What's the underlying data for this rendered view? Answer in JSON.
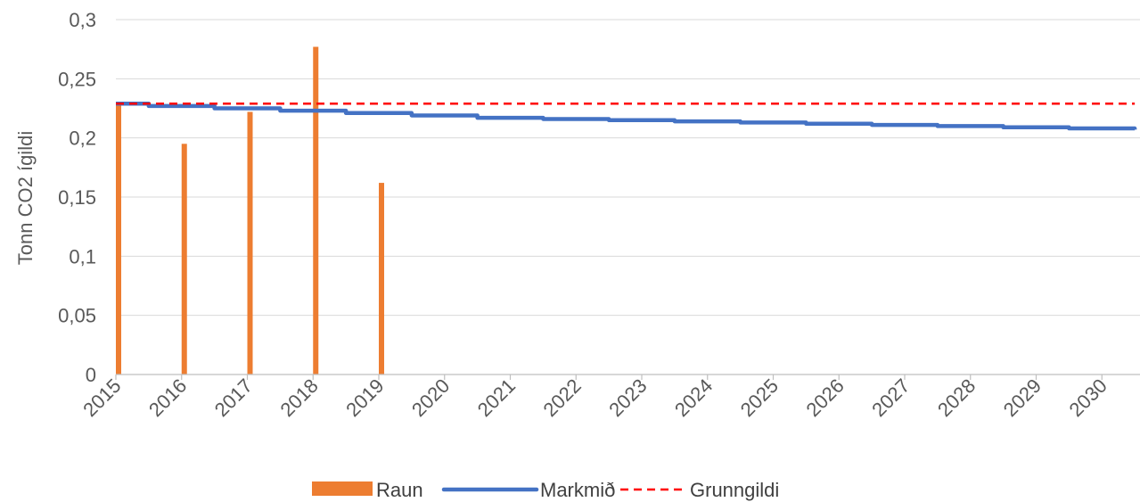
{
  "chart_data": {
    "type": "bar",
    "ylabel": "Tonn CO2 ígildi",
    "xlabel": "",
    "ylim": [
      0,
      0.3
    ],
    "y_ticks": [
      "0",
      "0,05",
      "0,1",
      "0,15",
      "0,2",
      "0,25",
      "0,3"
    ],
    "x_ticks": [
      "2015",
      "2016",
      "2017",
      "2018",
      "2019",
      "2020",
      "2021",
      "2022",
      "2023",
      "2024",
      "2025",
      "2026",
      "2027",
      "2028",
      "2029",
      "2030"
    ],
    "grid": true,
    "legend_position": "bottom",
    "series": [
      {
        "name": "Raun",
        "type": "bar",
        "color": "#ED7D31",
        "x": [
          2015,
          2016,
          2017,
          2018,
          2019
        ],
        "values": [
          0.229,
          0.195,
          0.222,
          0.277,
          0.162
        ]
      },
      {
        "name": "Markmið",
        "type": "line",
        "color": "#4472C4",
        "x": [
          2015.0,
          2015.5,
          2016.5,
          2017.5,
          2018.5,
          2019.5,
          2020.5,
          2021.5,
          2022.5,
          2023.5,
          2024.5,
          2025.5,
          2026.5,
          2027.5,
          2028.5,
          2029.5,
          2030.5
        ],
        "values": [
          0.229,
          0.227,
          0.225,
          0.223,
          0.221,
          0.219,
          0.217,
          0.216,
          0.215,
          0.214,
          0.213,
          0.212,
          0.211,
          0.21,
          0.209,
          0.208,
          0.207
        ]
      },
      {
        "name": "Grunngildi",
        "type": "line",
        "style": "dashed",
        "color": "#FF0000",
        "x": [
          2015.0,
          2030.5
        ],
        "values": [
          0.229,
          0.229
        ]
      }
    ]
  }
}
